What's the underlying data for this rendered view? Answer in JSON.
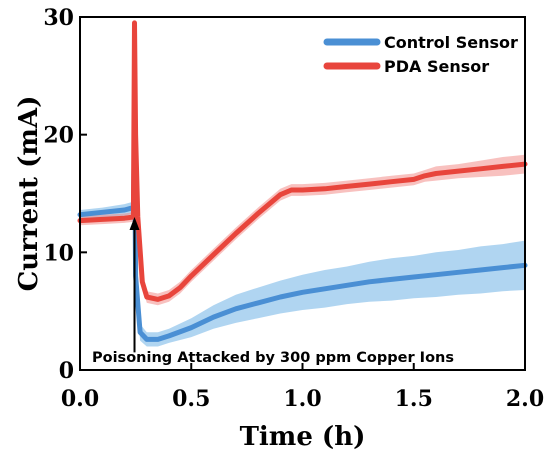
{
  "chart_data": {
    "type": "line",
    "xlabel": "Time (h)",
    "ylabel": "Current (mA)",
    "xlim": [
      0,
      2.0
    ],
    "ylim": [
      0,
      30
    ],
    "xticks": [
      "0.0",
      "0.5",
      "1.0",
      "1.5",
      "2.0"
    ],
    "yticks": [
      "0",
      "10",
      "20",
      "30"
    ],
    "x_tick_values": [
      0,
      0.5,
      1.0,
      1.5,
      2.0
    ],
    "y_tick_values": [
      0,
      10,
      20,
      30
    ],
    "grid": false,
    "legend_position": "top-right",
    "series": [
      {
        "name": "Control Sensor",
        "color": "#4a8fd4",
        "band_color": "#6fb2e6",
        "points": [
          [
            0.0,
            13.2,
            0.4
          ],
          [
            0.1,
            13.4,
            0.4
          ],
          [
            0.2,
            13.6,
            0.5
          ],
          [
            0.24,
            13.8,
            0.5
          ],
          [
            0.245,
            20.0,
            0.5
          ],
          [
            0.25,
            8.0,
            0.8
          ],
          [
            0.27,
            3.2,
            0.7
          ],
          [
            0.3,
            2.6,
            0.6
          ],
          [
            0.35,
            2.6,
            0.6
          ],
          [
            0.4,
            2.9,
            0.6
          ],
          [
            0.5,
            3.6,
            0.8
          ],
          [
            0.6,
            4.5,
            1.0
          ],
          [
            0.7,
            5.2,
            1.2
          ],
          [
            0.8,
            5.7,
            1.3
          ],
          [
            0.9,
            6.2,
            1.4
          ],
          [
            1.0,
            6.6,
            1.5
          ],
          [
            1.1,
            6.9,
            1.6
          ],
          [
            1.2,
            7.2,
            1.6
          ],
          [
            1.3,
            7.5,
            1.7
          ],
          [
            1.4,
            7.7,
            1.8
          ],
          [
            1.5,
            7.9,
            1.8
          ],
          [
            1.6,
            8.1,
            1.9
          ],
          [
            1.7,
            8.3,
            1.9
          ],
          [
            1.8,
            8.5,
            2.0
          ],
          [
            1.9,
            8.7,
            2.0
          ],
          [
            2.0,
            8.9,
            2.1
          ]
        ]
      },
      {
        "name": "PDA Sensor",
        "color": "#e8453c",
        "band_color": "#f28e8a",
        "points": [
          [
            0.0,
            12.7,
            0.4
          ],
          [
            0.1,
            12.8,
            0.4
          ],
          [
            0.2,
            12.9,
            0.4
          ],
          [
            0.24,
            13.0,
            0.4
          ],
          [
            0.245,
            29.5,
            0.4
          ],
          [
            0.25,
            20.0,
            0.6
          ],
          [
            0.26,
            13.0,
            0.6
          ],
          [
            0.28,
            7.5,
            0.5
          ],
          [
            0.3,
            6.2,
            0.5
          ],
          [
            0.35,
            6.0,
            0.5
          ],
          [
            0.4,
            6.3,
            0.5
          ],
          [
            0.45,
            7.0,
            0.5
          ],
          [
            0.5,
            8.0,
            0.5
          ],
          [
            0.6,
            9.8,
            0.5
          ],
          [
            0.7,
            11.6,
            0.5
          ],
          [
            0.8,
            13.3,
            0.5
          ],
          [
            0.9,
            14.9,
            0.5
          ],
          [
            0.95,
            15.3,
            0.5
          ],
          [
            1.0,
            15.3,
            0.5
          ],
          [
            1.1,
            15.4,
            0.5
          ],
          [
            1.2,
            15.6,
            0.5
          ],
          [
            1.3,
            15.8,
            0.5
          ],
          [
            1.4,
            16.0,
            0.5
          ],
          [
            1.5,
            16.2,
            0.5
          ],
          [
            1.55,
            16.5,
            0.5
          ],
          [
            1.6,
            16.7,
            0.6
          ],
          [
            1.7,
            16.9,
            0.6
          ],
          [
            1.8,
            17.1,
            0.7
          ],
          [
            1.9,
            17.3,
            0.8
          ],
          [
            2.0,
            17.5,
            0.8
          ]
        ]
      }
    ],
    "annotation": {
      "text": "Poisoning Attacked by 300 ppm Copper Ions",
      "x": 0.245,
      "y_from": 1.5,
      "y_to": 13.0
    }
  }
}
